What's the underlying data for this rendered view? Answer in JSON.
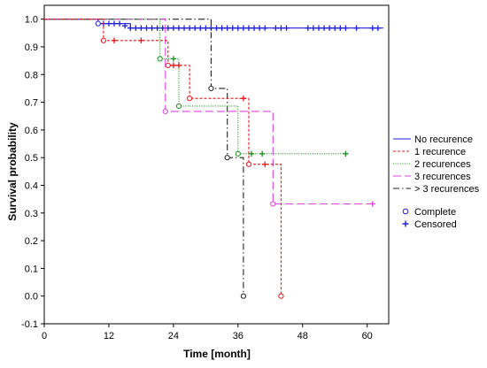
{
  "chart_data": {
    "type": "line",
    "subtype": "kaplan-meier step curves",
    "title": "",
    "xlabel": "Time [month]",
    "ylabel": "Survival probability",
    "xlim": [
      0,
      64
    ],
    "ylim": [
      -0.1,
      1.05
    ],
    "xticks": [
      0,
      12,
      24,
      36,
      48,
      60
    ],
    "yticks": [
      -0.1,
      0.0,
      0.1,
      0.2,
      0.3,
      0.4,
      0.5,
      0.6,
      0.7,
      0.8,
      0.9,
      1.0
    ],
    "ytick_labels": [
      "-0.1",
      "0.0",
      "0.1",
      "0.2",
      "0.3",
      "0.4",
      "0.5",
      "0.6",
      "0.7",
      "0.8",
      "0.9",
      "1.0"
    ],
    "grid": false,
    "legend_position": "right",
    "series": [
      {
        "name": "No recurence",
        "color": "#1f1fdc",
        "dash": "solid",
        "steps": [
          [
            0,
            1.0
          ],
          [
            10,
            0.984
          ],
          [
            16,
            0.968
          ],
          [
            63,
            0.968
          ]
        ],
        "complete": [
          [
            10,
            0.984
          ]
        ],
        "censored": [
          [
            11,
            0.984
          ],
          [
            12,
            0.984
          ],
          [
            13,
            0.984
          ],
          [
            14,
            0.984
          ],
          [
            15,
            0.976
          ],
          [
            16,
            0.968
          ],
          [
            17,
            0.968
          ],
          [
            18,
            0.968
          ],
          [
            19,
            0.968
          ],
          [
            20,
            0.968
          ],
          [
            21,
            0.968
          ],
          [
            22,
            0.968
          ],
          [
            23,
            0.968
          ],
          [
            24,
            0.968
          ],
          [
            25,
            0.968
          ],
          [
            26,
            0.968
          ],
          [
            27,
            0.968
          ],
          [
            28,
            0.968
          ],
          [
            29,
            0.968
          ],
          [
            30,
            0.968
          ],
          [
            31,
            0.968
          ],
          [
            32,
            0.968
          ],
          [
            33,
            0.968
          ],
          [
            34,
            0.968
          ],
          [
            35,
            0.968
          ],
          [
            36,
            0.968
          ],
          [
            37,
            0.968
          ],
          [
            38,
            0.968
          ],
          [
            39,
            0.968
          ],
          [
            40,
            0.968
          ],
          [
            41,
            0.968
          ],
          [
            43,
            0.968
          ],
          [
            44,
            0.968
          ],
          [
            45,
            0.968
          ],
          [
            49,
            0.968
          ],
          [
            50,
            0.968
          ],
          [
            51,
            0.968
          ],
          [
            52,
            0.968
          ],
          [
            53,
            0.968
          ],
          [
            54,
            0.968
          ],
          [
            55,
            0.968
          ],
          [
            56,
            0.968
          ],
          [
            58,
            0.968
          ],
          [
            61,
            0.968
          ],
          [
            62,
            0.968
          ]
        ]
      },
      {
        "name": "1 recurence",
        "color": "#e8141a",
        "dash": "3,2",
        "steps": [
          [
            0,
            1.0
          ],
          [
            11,
            0.923
          ],
          [
            23,
            0.833
          ],
          [
            27,
            0.714
          ],
          [
            38,
            0.476
          ],
          [
            44,
            0.0
          ]
        ],
        "complete": [
          [
            11,
            0.923
          ],
          [
            23,
            0.833
          ],
          [
            27,
            0.714
          ],
          [
            38,
            0.476
          ],
          [
            44,
            0.0
          ]
        ],
        "censored": [
          [
            13,
            0.923
          ],
          [
            18,
            0.923
          ],
          [
            24,
            0.833
          ],
          [
            25,
            0.833
          ],
          [
            37,
            0.714
          ],
          [
            41,
            0.476
          ]
        ]
      },
      {
        "name": "2 recurences",
        "color": "#1e8c1e",
        "dash": "1,1.6",
        "steps": [
          [
            0,
            1.0
          ],
          [
            21.5,
            0.857
          ],
          [
            25,
            0.686
          ],
          [
            36,
            0.514
          ],
          [
            56,
            0.514
          ]
        ],
        "complete": [
          [
            21.5,
            0.857
          ],
          [
            25,
            0.686
          ],
          [
            36,
            0.514
          ]
        ],
        "censored": [
          [
            24,
            0.857
          ],
          [
            38.5,
            0.514
          ],
          [
            40.5,
            0.514
          ],
          [
            56,
            0.514
          ]
        ]
      },
      {
        "name": "3 recurences",
        "color": "#e040e0",
        "dash": "9,4",
        "steps": [
          [
            0,
            1.0
          ],
          [
            22.5,
            0.667
          ],
          [
            42.5,
            0.333
          ],
          [
            61,
            0.333
          ]
        ],
        "complete": [
          [
            22.5,
            0.667
          ],
          [
            42.5,
            0.333
          ]
        ],
        "censored": [
          [
            61,
            0.333
          ]
        ]
      },
      {
        "name": "> 3 recurences",
        "color": "#222222",
        "dash": "7,3,1.5,3",
        "steps": [
          [
            0,
            1.0
          ],
          [
            31,
            0.75
          ],
          [
            34,
            0.5
          ],
          [
            37,
            0.0
          ]
        ],
        "complete": [
          [
            31,
            0.75
          ],
          [
            34,
            0.5
          ],
          [
            37,
            0.0
          ]
        ],
        "censored": []
      }
    ],
    "marker_legend": [
      {
        "name": "Complete",
        "marker": "circle",
        "color": "#1f1fdc"
      },
      {
        "name": "Censored",
        "marker": "plus",
        "color": "#1f1fdc"
      }
    ]
  }
}
